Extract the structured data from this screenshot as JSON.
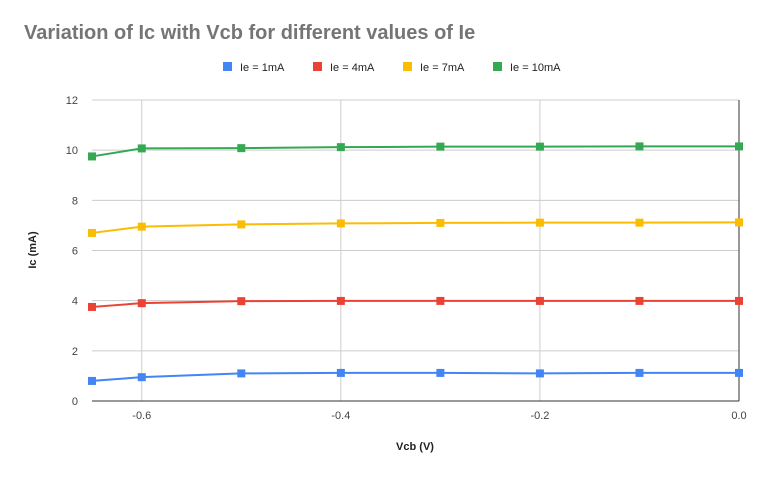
{
  "chart_data": {
    "type": "line",
    "title": "Variation of Ic with Vcb for different values of Ie",
    "xlabel": "Vcb (V)",
    "ylabel": "Ic (mA)",
    "x": [
      -0.65,
      -0.6,
      -0.5,
      -0.4,
      -0.3,
      -0.2,
      -0.1,
      0.0
    ],
    "xlim": [
      -0.65,
      0.0
    ],
    "ylim": [
      0,
      12
    ],
    "xticks": [
      "-0.6",
      "-0.4",
      "-0.2",
      "0.0"
    ],
    "xtick_values": [
      -0.6,
      -0.4,
      -0.2,
      0.0
    ],
    "yticks": [
      "0",
      "2",
      "4",
      "6",
      "8",
      "10",
      "12"
    ],
    "ytick_values": [
      0,
      2,
      4,
      6,
      8,
      10,
      12
    ],
    "grid": true,
    "legend_position": "top",
    "series": [
      {
        "name": "Ie = 1mA",
        "color": "#4285f4",
        "values": [
          0.8,
          0.95,
          1.1,
          1.12,
          1.12,
          1.1,
          1.12,
          1.12
        ]
      },
      {
        "name": "Ie = 4mA",
        "color": "#ea4335",
        "values": [
          3.75,
          3.9,
          3.98,
          3.99,
          3.99,
          3.99,
          3.99,
          3.99
        ]
      },
      {
        "name": "Ie = 7mA",
        "color": "#fbbc04",
        "values": [
          6.7,
          6.95,
          7.04,
          7.08,
          7.1,
          7.11,
          7.11,
          7.12
        ]
      },
      {
        "name": "Ie = 10mA",
        "color": "#34a853",
        "values": [
          9.75,
          10.07,
          10.08,
          10.12,
          10.14,
          10.14,
          10.15,
          10.15
        ]
      }
    ]
  }
}
